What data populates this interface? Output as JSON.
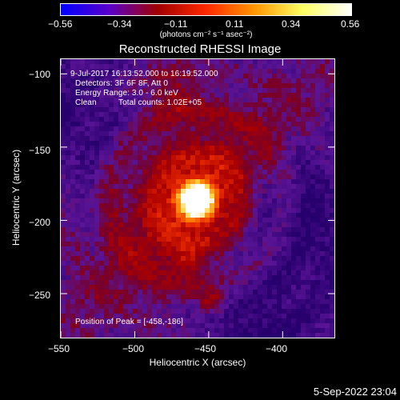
{
  "chart_data": {
    "type": "heatmap",
    "title": "Reconstructed RHESSI Image",
    "xlabel": "Heliocentric X (arcsec)",
    "ylabel": "Heliocentric Y (arcsec)",
    "xlim": [
      -550,
      -365
    ],
    "ylim": [
      -280,
      -90
    ],
    "x_ticks": [
      "−550",
      "−500",
      "−450",
      "−400"
    ],
    "x_tick_values": [
      -550,
      -500,
      -450,
      -400
    ],
    "y_ticks": [
      "−100",
      "−150",
      "−200",
      "−250"
    ],
    "y_tick_values": [
      -100,
      -150,
      -200,
      -250
    ],
    "colorbar": {
      "min": -0.56,
      "max": 0.56,
      "ticks": [
        "−0.56",
        "−0.34",
        "−0.11",
        "0.11",
        "0.34",
        "0.56"
      ],
      "unit_label": "(photons cm⁻² s⁻¹ asec⁻²)",
      "colormap": [
        "#0000ff",
        "#5a00c8",
        "#a00000",
        "#ff2800",
        "#ff9600",
        "#ffff64",
        "#ffffff"
      ]
    },
    "peak": {
      "x": -458,
      "y": -186
    },
    "annotations": {
      "time_range": "9-Jul-2017 16:13:52.000 to 16:19:52.000",
      "detectors": "Detectors: 3F 6F 8F, Att 0",
      "energy": "Energy Range: 3.0 - 6.0 keV",
      "algorithm": "Clean",
      "counts": "Total counts: 1.02E+05",
      "peak_text": "Position of Peak = [-458,-186]"
    }
  },
  "footer": {
    "timestamp": "5-Sep-2022 23:04"
  }
}
